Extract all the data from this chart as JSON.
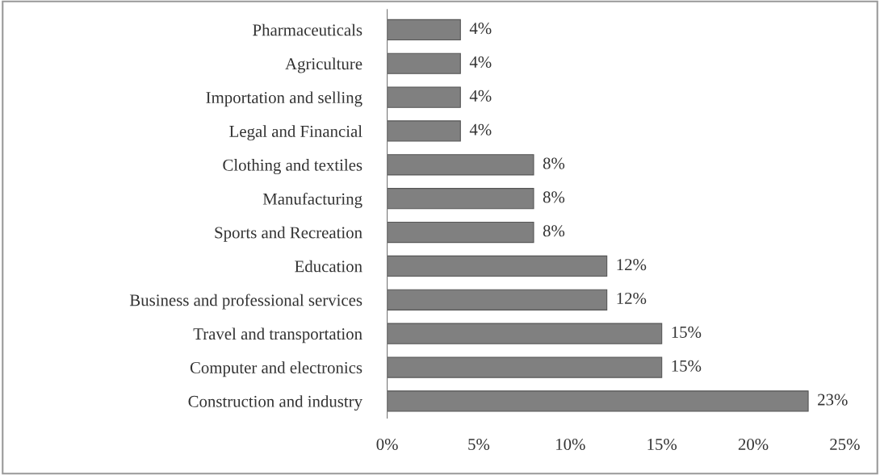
{
  "chart_data": {
    "type": "bar",
    "orientation": "horizontal",
    "categories": [
      "Pharmaceuticals",
      "Agriculture",
      "Importation and selling",
      "Legal and Financial",
      "Clothing and textiles",
      "Manufacturing",
      "Sports and Recreation",
      "Education",
      "Business and professional services",
      "Travel and transportation",
      "Computer and electronics",
      "Construction and industry"
    ],
    "values": [
      4,
      4,
      4,
      4,
      8,
      8,
      8,
      12,
      12,
      15,
      15,
      23
    ],
    "value_labels": [
      "4%",
      "4%",
      "4%",
      "4%",
      "8%",
      "8%",
      "8%",
      "12%",
      "12%",
      "15%",
      "15%",
      "23%"
    ],
    "color": "#808080",
    "xlim": [
      0,
      25
    ],
    "xticks": [
      {
        "value": 0,
        "label": "0%"
      },
      {
        "value": 5,
        "label": "5%"
      },
      {
        "value": 10,
        "label": "10%"
      },
      {
        "value": 15,
        "label": "15%"
      },
      {
        "value": 20,
        "label": "20%"
      },
      {
        "value": 25,
        "label": "25%"
      }
    ],
    "grid": false,
    "legend": false
  }
}
